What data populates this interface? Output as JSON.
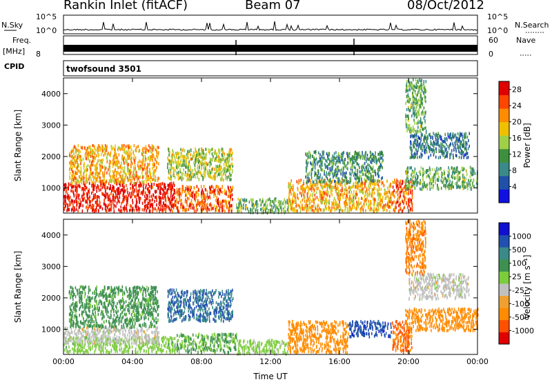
{
  "header": {
    "station": "Rankin Inlet (fitACF)",
    "beam": "Beam 07",
    "date": "08/Oct/2012"
  },
  "strips": {
    "noise": {
      "left_label": "N.Sky",
      "right_label": "N.Search",
      "ticks": [
        "10^5",
        "10^0"
      ]
    },
    "freq": {
      "left_label_1": "Freq.",
      "left_label_2": "[MHz]",
      "left_ticks": [
        "8"
      ],
      "right_label": "Nave",
      "right_ticks": [
        "60",
        "0"
      ]
    },
    "cpid": {
      "label": "CPID",
      "value": "twofsound 3501"
    }
  },
  "colors": {
    "power_scale": [
      "#1010e0",
      "#2050a8",
      "#3a8a8a",
      "#3e8f3e",
      "#9fd048",
      "#f0c000",
      "#ff8c00",
      "#ff4500",
      "#e00000"
    ],
    "velocity_scale": [
      "#1010d0",
      "#2050b0",
      "#3a8a8a",
      "#3e9050",
      "#7ccd3c",
      "#c0c0c0",
      "#f0a030",
      "#ff8c00",
      "#ff5000",
      "#e00000"
    ]
  },
  "chart_data": [
    {
      "type": "heatmap",
      "name": "power",
      "ylabel": "Slant Range [km]",
      "xlabel": "",
      "x_ticks": [
        "00:00",
        "04:00",
        "08:00",
        "12:00",
        "16:00",
        "20:00",
        "00:00"
      ],
      "y_ticks": [
        "1000",
        "2000",
        "3000",
        "4000"
      ],
      "ylim": [
        200,
        4500
      ],
      "xlim_hours": [
        0,
        24
      ],
      "colorbar": {
        "label": "Power [dB]",
        "ticks": [
          "4",
          "8",
          "12",
          "16",
          "20",
          "24",
          "28"
        ],
        "range": [
          0,
          30
        ]
      },
      "regions": [
        {
          "t0": 0,
          "t1": 6.5,
          "r0": 300,
          "r1": 1200,
          "level": 28
        },
        {
          "t0": 0.3,
          "t1": 5.5,
          "r0": 1200,
          "r1": 2400,
          "level": 20
        },
        {
          "t0": 6.5,
          "t1": 9.8,
          "r0": 300,
          "r1": 1100,
          "level": 24
        },
        {
          "t0": 6.0,
          "t1": 9.8,
          "r0": 1300,
          "r1": 2300,
          "level": 16
        },
        {
          "t0": 10.0,
          "t1": 13.0,
          "r0": 250,
          "r1": 700,
          "level": 12
        },
        {
          "t0": 13.0,
          "t1": 19.0,
          "r0": 300,
          "r1": 1300,
          "level": 20
        },
        {
          "t0": 14.0,
          "t1": 18.5,
          "r0": 1200,
          "r1": 2200,
          "level": 10
        },
        {
          "t0": 19.0,
          "t1": 20.2,
          "r0": 300,
          "r1": 1300,
          "level": 24
        },
        {
          "t0": 19.8,
          "t1": 24.0,
          "r0": 1000,
          "r1": 1700,
          "level": 12
        },
        {
          "t0": 20.0,
          "t1": 23.5,
          "r0": 2000,
          "r1": 2800,
          "level": 8
        },
        {
          "t0": 19.8,
          "t1": 21.0,
          "r0": 2800,
          "r1": 4500,
          "level": 12
        }
      ]
    },
    {
      "type": "heatmap",
      "name": "velocity",
      "ylabel": "Slant Range [km]",
      "xlabel": "Time UT",
      "x_ticks": [
        "00:00",
        "04:00",
        "08:00",
        "12:00",
        "16:00",
        "20:00",
        "00:00"
      ],
      "y_ticks": [
        "1000",
        "2000",
        "3000",
        "4000"
      ],
      "ylim": [
        200,
        4500
      ],
      "xlim_hours": [
        0,
        24
      ],
      "colorbar": {
        "label": "Velocity [m s⁻¹]",
        "ticks": [
          "1000",
          "500",
          "100",
          "25",
          "-25",
          "-100",
          "-500",
          "-1000"
        ]
      },
      "regions": [
        {
          "t0": 0,
          "t1": 6.5,
          "r0": 300,
          "r1": 800,
          "level": 60
        },
        {
          "t0": 0,
          "t1": 5.5,
          "r0": 600,
          "r1": 1100,
          "level": 0
        },
        {
          "t0": 0.3,
          "t1": 5.5,
          "r0": 1100,
          "r1": 2400,
          "level": 150
        },
        {
          "t0": 6.0,
          "t1": 9.8,
          "r0": 1300,
          "r1": 2300,
          "level": 500
        },
        {
          "t0": 6.5,
          "t1": 10.0,
          "r0": 300,
          "r1": 900,
          "level": 100
        },
        {
          "t0": 10.0,
          "t1": 13.0,
          "r0": 250,
          "r1": 700,
          "level": 50
        },
        {
          "t0": 13.0,
          "t1": 16.5,
          "r0": 300,
          "r1": 1300,
          "level": -300
        },
        {
          "t0": 16.5,
          "t1": 19.0,
          "r0": 800,
          "r1": 1300,
          "level": 800
        },
        {
          "t0": 19.0,
          "t1": 20.2,
          "r0": 300,
          "r1": 1300,
          "level": -500
        },
        {
          "t0": 19.8,
          "t1": 24.0,
          "r0": 1000,
          "r1": 1700,
          "level": -300
        },
        {
          "t0": 20.0,
          "t1": 23.5,
          "r0": 2000,
          "r1": 2800,
          "level": 0
        },
        {
          "t0": 19.8,
          "t1": 21.0,
          "r0": 2800,
          "r1": 4500,
          "level": -400
        }
      ]
    }
  ]
}
